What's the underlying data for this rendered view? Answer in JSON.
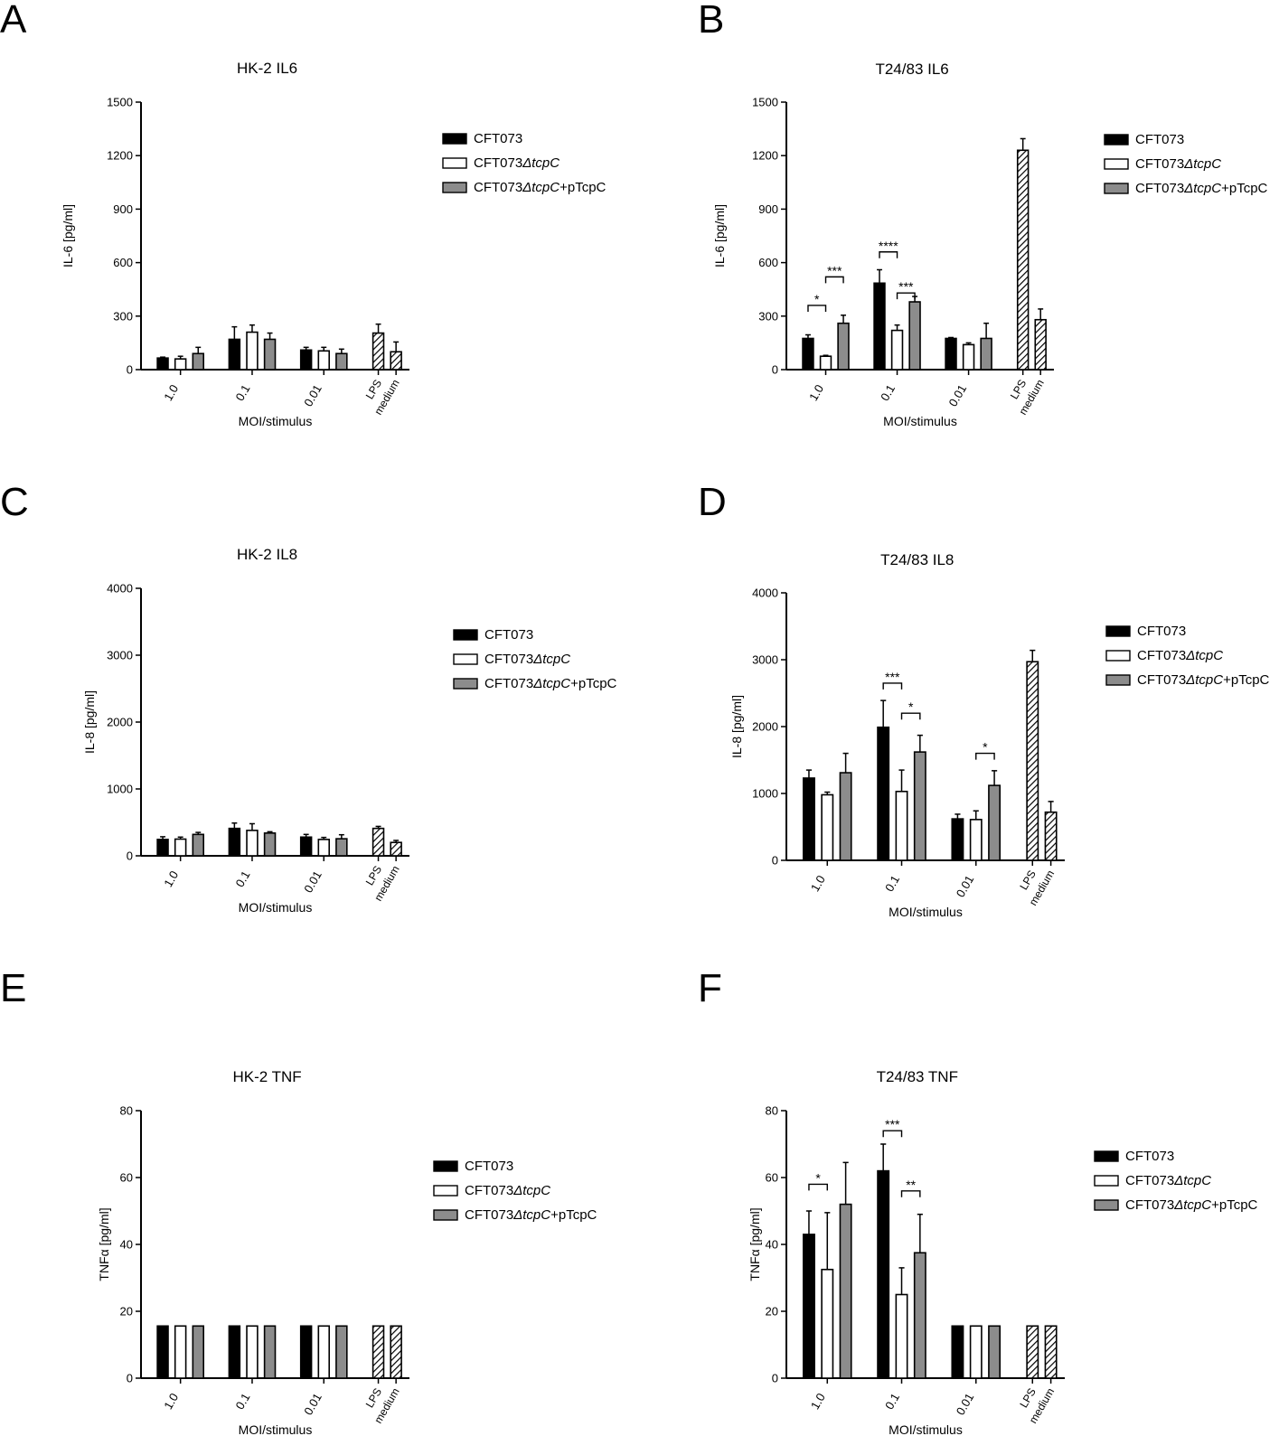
{
  "figure": {
    "colors": {
      "cft073": "#000000",
      "mutant": "#ffffff",
      "complemented": "#8c8c8c",
      "axis": "#000000"
    },
    "group_labels": [
      "1.0",
      "0.1",
      "0.01"
    ],
    "control_labels": [
      "LPS",
      "medium"
    ],
    "legend": [
      "CFT073",
      "CFT073ΔtcpC",
      "CFT073ΔtcpC+pTcpC"
    ],
    "legend_parts": [
      {
        "base": "CFT073",
        "italic": "",
        "suffix": ""
      },
      {
        "base": "CFT073",
        "italic": "ΔtcpC",
        "suffix": ""
      },
      {
        "base": "CFT073",
        "italic": "ΔtcpC",
        "suffix": "+pTcpC"
      }
    ]
  },
  "chart_data": [
    {
      "panel": "A",
      "type": "bar",
      "title": "HK-2 IL6",
      "xlabel": "MOI/stimulus",
      "ylabel": "IL-6 [pg/ml]",
      "ylim": [
        0,
        1500
      ],
      "yticks": [
        0,
        300,
        600,
        900,
        1200,
        1500
      ],
      "categories": [
        "1.0",
        "0.1",
        "0.01"
      ],
      "series": [
        {
          "name": "CFT073",
          "values": [
            65,
            170,
            110
          ],
          "errors": [
            5,
            70,
            15
          ]
        },
        {
          "name": "CFT073ΔtcpC",
          "values": [
            60,
            210,
            105
          ],
          "errors": [
            15,
            40,
            20
          ]
        },
        {
          "name": "CFT073ΔtcpC+pTcpC",
          "values": [
            90,
            170,
            90
          ],
          "errors": [
            35,
            35,
            25
          ]
        }
      ],
      "controls": [
        {
          "name": "LPS",
          "value": 205,
          "error": 50
        },
        {
          "name": "medium",
          "value": 100,
          "error": 55
        }
      ],
      "significance": []
    },
    {
      "panel": "B",
      "type": "bar",
      "title": "T24/83 IL6",
      "xlabel": "MOI/stimulus",
      "ylabel": "IL-6 [pg/ml]",
      "ylim": [
        0,
        1500
      ],
      "yticks": [
        0,
        300,
        600,
        900,
        1200,
        1500
      ],
      "categories": [
        "1.0",
        "0.1",
        "0.01"
      ],
      "series": [
        {
          "name": "CFT073",
          "values": [
            175,
            485,
            175
          ],
          "errors": [
            20,
            75,
            5
          ]
        },
        {
          "name": "CFT073ΔtcpC",
          "values": [
            75,
            220,
            140
          ],
          "errors": [
            5,
            30,
            10
          ]
        },
        {
          "name": "CFT073ΔtcpC+pTcpC",
          "values": [
            260,
            380,
            175
          ],
          "errors": [
            45,
            30,
            85
          ]
        }
      ],
      "controls": [
        {
          "name": "LPS",
          "value": 1230,
          "error": 65
        },
        {
          "name": "medium",
          "value": 280,
          "error": 60
        }
      ],
      "significance": [
        {
          "group": 0,
          "from": 0,
          "to": 1,
          "label": "*",
          "y": 360
        },
        {
          "group": 0,
          "from": 1,
          "to": 2,
          "label": "***",
          "y": 520
        },
        {
          "group": 1,
          "from": 0,
          "to": 1,
          "label": "****",
          "y": 660
        },
        {
          "group": 1,
          "from": 1,
          "to": 2,
          "label": "***",
          "y": 430
        }
      ]
    },
    {
      "panel": "C",
      "type": "bar",
      "title": "HK-2 IL8",
      "xlabel": "MOI/stimulus",
      "ylabel": "IL-8 [pg/ml]",
      "ylim": [
        0,
        4000
      ],
      "yticks": [
        0,
        1000,
        2000,
        3000,
        4000
      ],
      "categories": [
        "1.0",
        "0.1",
        "0.01"
      ],
      "series": [
        {
          "name": "CFT073",
          "values": [
            245,
            410,
            280
          ],
          "errors": [
            40,
            80,
            40
          ]
        },
        {
          "name": "CFT073ΔtcpC",
          "values": [
            250,
            380,
            245
          ],
          "errors": [
            30,
            100,
            30
          ]
        },
        {
          "name": "CFT073ΔtcpC+pTcpC",
          "values": [
            320,
            340,
            255
          ],
          "errors": [
            30,
            20,
            60
          ]
        }
      ],
      "controls": [
        {
          "name": "LPS",
          "value": 410,
          "error": 30
        },
        {
          "name": "medium",
          "value": 200,
          "error": 30
        }
      ],
      "significance": []
    },
    {
      "panel": "D",
      "type": "bar",
      "title": "T24/83 IL8",
      "xlabel": "MOI/stimulus",
      "ylabel": "IL-8 [pg/ml]",
      "ylim": [
        0,
        4000
      ],
      "yticks": [
        0,
        1000,
        2000,
        3000,
        4000
      ],
      "categories": [
        "1.0",
        "0.1",
        "0.01"
      ],
      "series": [
        {
          "name": "CFT073",
          "values": [
            1230,
            1990,
            620
          ],
          "errors": [
            120,
            400,
            70
          ]
        },
        {
          "name": "CFT073ΔtcpC",
          "values": [
            980,
            1030,
            610
          ],
          "errors": [
            40,
            320,
            130
          ]
        },
        {
          "name": "CFT073ΔtcpC+pTcpC",
          "values": [
            1310,
            1620,
            1120
          ],
          "errors": [
            290,
            250,
            220
          ]
        }
      ],
      "controls": [
        {
          "name": "LPS",
          "value": 2970,
          "error": 170
        },
        {
          "name": "medium",
          "value": 720,
          "error": 160
        }
      ],
      "significance": [
        {
          "group": 1,
          "from": 0,
          "to": 1,
          "label": "***",
          "y": 2650
        },
        {
          "group": 1,
          "from": 1,
          "to": 2,
          "label": "*",
          "y": 2200
        },
        {
          "group": 2,
          "from": 1,
          "to": 2,
          "label": "*",
          "y": 1600
        }
      ]
    },
    {
      "panel": "E",
      "type": "bar",
      "title": "HK-2 TNF",
      "xlabel": "MOI/stimulus",
      "ylabel": "TNFα [pg/ml]",
      "ylim": [
        0,
        80
      ],
      "yticks": [
        0,
        20,
        40,
        60,
        80
      ],
      "categories": [
        "1.0",
        "0.1",
        "0.01"
      ],
      "series": [
        {
          "name": "CFT073",
          "values": [
            15.6,
            15.6,
            15.6
          ],
          "errors": [
            0,
            0,
            0
          ]
        },
        {
          "name": "CFT073ΔtcpC",
          "values": [
            15.6,
            15.6,
            15.6
          ],
          "errors": [
            0,
            0,
            0
          ]
        },
        {
          "name": "CFT073ΔtcpC+pTcpC",
          "values": [
            15.6,
            15.6,
            15.6
          ],
          "errors": [
            0,
            0,
            0
          ]
        }
      ],
      "controls": [
        {
          "name": "LPS",
          "value": 15.6,
          "error": 0
        },
        {
          "name": "medium",
          "value": 15.6,
          "error": 0
        }
      ],
      "significance": []
    },
    {
      "panel": "F",
      "type": "bar",
      "title": "T24/83 TNF",
      "xlabel": "MOI/stimulus",
      "ylabel": "TNFα [pg/ml]",
      "ylim": [
        0,
        80
      ],
      "yticks": [
        0,
        20,
        40,
        60,
        80
      ],
      "categories": [
        "1.0",
        "0.1",
        "0.01"
      ],
      "series": [
        {
          "name": "CFT073",
          "values": [
            43,
            62,
            15.6
          ],
          "errors": [
            7,
            8,
            0
          ]
        },
        {
          "name": "CFT073ΔtcpC",
          "values": [
            32.5,
            25,
            15.6
          ],
          "errors": [
            17,
            8,
            0
          ]
        },
        {
          "name": "CFT073ΔtcpC+pTcpC",
          "values": [
            52,
            37.5,
            15.6
          ],
          "errors": [
            12.5,
            11.5,
            0
          ]
        }
      ],
      "controls": [
        {
          "name": "LPS",
          "value": 15.6,
          "error": 0
        },
        {
          "name": "medium",
          "value": 15.6,
          "error": 0
        }
      ],
      "significance": [
        {
          "group": 0,
          "from": 0,
          "to": 1,
          "label": "*",
          "y": 58
        },
        {
          "group": 1,
          "from": 0,
          "to": 1,
          "label": "***",
          "y": 74
        },
        {
          "group": 1,
          "from": 1,
          "to": 2,
          "label": "**",
          "y": 56
        }
      ]
    }
  ]
}
